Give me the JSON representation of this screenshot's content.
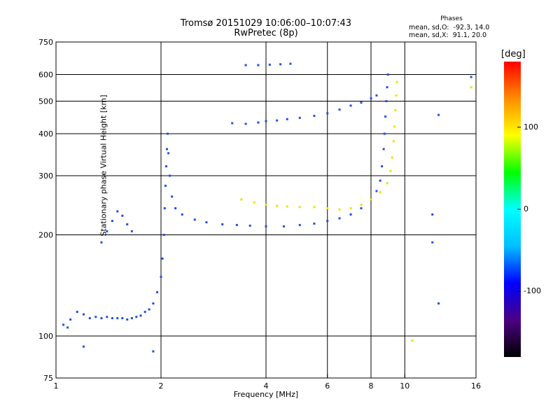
{
  "header": {
    "title_line1": "Tromsø 20151029 10:06:00–10:07:43",
    "title_line2": "RwPretec (8p)"
  },
  "phase_box": {
    "heading": "Phases",
    "o_stats": "mean, sd,O:  -92.3, 14.0",
    "x_stats": "mean, sd,X:  91.1, 20.0"
  },
  "colorbar": {
    "unit": "[deg]",
    "ticks": [
      {
        "label": "100",
        "value": 100
      },
      {
        "label": "0",
        "value": 0
      },
      {
        "label": "-100",
        "value": -100
      }
    ],
    "range": [
      -180,
      180
    ],
    "colors": [
      "#000000",
      "#4b0082",
      "#0000ff",
      "#00bfff",
      "#00ffff",
      "#00ff00",
      "#ffff00",
      "#ff8c00",
      "#ff0000"
    ]
  },
  "chart_data": {
    "type": "scatter",
    "xlabel": "Frequency [MHz]",
    "ylabel": "Stationary phase Virtual Height [km]",
    "x_scale": "log",
    "y_scale": "log",
    "xlim": [
      1,
      16
    ],
    "ylim": [
      75,
      750
    ],
    "x_ticks": [
      1,
      2,
      4,
      6,
      8,
      10,
      16
    ],
    "x_tick_labels": [
      "1",
      "2",
      "4",
      "6",
      "8",
      "10",
      "16"
    ],
    "y_ticks": [
      75,
      100,
      200,
      300,
      400,
      500,
      600,
      750
    ],
    "y_tick_labels": [
      "75",
      "100",
      "200",
      "300",
      "400",
      "500",
      "600",
      "750"
    ],
    "grid": true,
    "series": [
      {
        "name": "O",
        "color": "#1e50e6",
        "points": [
          [
            1.05,
            108
          ],
          [
            1.08,
            106
          ],
          [
            1.1,
            112
          ],
          [
            1.15,
            118
          ],
          [
            1.2,
            116
          ],
          [
            1.25,
            113
          ],
          [
            1.3,
            114
          ],
          [
            1.35,
            113
          ],
          [
            1.4,
            114
          ],
          [
            1.45,
            113
          ],
          [
            1.5,
            113
          ],
          [
            1.55,
            113
          ],
          [
            1.6,
            112
          ],
          [
            1.65,
            113
          ],
          [
            1.7,
            114
          ],
          [
            1.75,
            115
          ],
          [
            1.8,
            118
          ],
          [
            1.85,
            120
          ],
          [
            1.9,
            125
          ],
          [
            1.95,
            135
          ],
          [
            2.0,
            150
          ],
          [
            2.02,
            170
          ],
          [
            2.04,
            200
          ],
          [
            2.05,
            240
          ],
          [
            2.06,
            280
          ],
          [
            2.07,
            320
          ],
          [
            2.08,
            360
          ],
          [
            2.09,
            400
          ],
          [
            2.1,
            350
          ],
          [
            2.12,
            300
          ],
          [
            2.15,
            260
          ],
          [
            2.2,
            240
          ],
          [
            2.3,
            230
          ],
          [
            2.5,
            222
          ],
          [
            2.7,
            218
          ],
          [
            3.0,
            215
          ],
          [
            3.3,
            214
          ],
          [
            3.6,
            213
          ],
          [
            4.0,
            212
          ],
          [
            4.5,
            212
          ],
          [
            5.0,
            214
          ],
          [
            5.5,
            216
          ],
          [
            6.0,
            220
          ],
          [
            6.5,
            224
          ],
          [
            7.0,
            230
          ],
          [
            7.5,
            240
          ],
          [
            8.0,
            255
          ],
          [
            8.3,
            270
          ],
          [
            8.5,
            290
          ],
          [
            8.6,
            320
          ],
          [
            8.7,
            360
          ],
          [
            8.75,
            400
          ],
          [
            8.8,
            450
          ],
          [
            8.85,
            500
          ],
          [
            8.9,
            550
          ],
          [
            8.95,
            600
          ],
          [
            3.2,
            430
          ],
          [
            3.5,
            428
          ],
          [
            3.8,
            432
          ],
          [
            4.0,
            436
          ],
          [
            4.3,
            438
          ],
          [
            4.6,
            442
          ],
          [
            5.0,
            446
          ],
          [
            5.5,
            452
          ],
          [
            6.0,
            460
          ],
          [
            6.5,
            472
          ],
          [
            7.0,
            485
          ],
          [
            7.5,
            495
          ],
          [
            8.0,
            510
          ],
          [
            8.3,
            520
          ],
          [
            3.5,
            640
          ],
          [
            3.8,
            640
          ],
          [
            4.1,
            642
          ],
          [
            4.4,
            644
          ],
          [
            4.7,
            646
          ],
          [
            1.35,
            190
          ],
          [
            1.4,
            205
          ],
          [
            1.45,
            220
          ],
          [
            1.5,
            235
          ],
          [
            1.55,
            228
          ],
          [
            1.6,
            215
          ],
          [
            1.65,
            205
          ],
          [
            1.2,
            93
          ],
          [
            1.9,
            90
          ],
          [
            12.5,
            125
          ],
          [
            12.0,
            230
          ],
          [
            12.0,
            190
          ],
          [
            15.5,
            590
          ],
          [
            12.5,
            455
          ]
        ]
      },
      {
        "name": "X",
        "color": "#e6e600",
        "points": [
          [
            3.4,
            255
          ],
          [
            3.7,
            250
          ],
          [
            4.0,
            246
          ],
          [
            4.3,
            244
          ],
          [
            4.6,
            243
          ],
          [
            5.0,
            242
          ],
          [
            5.5,
            242
          ],
          [
            6.0,
            240
          ],
          [
            6.5,
            238
          ],
          [
            7.0,
            240
          ],
          [
            7.5,
            246
          ],
          [
            8.0,
            255
          ],
          [
            8.5,
            268
          ],
          [
            8.9,
            285
          ],
          [
            9.1,
            310
          ],
          [
            9.2,
            340
          ],
          [
            9.3,
            380
          ],
          [
            9.35,
            420
          ],
          [
            9.4,
            470
          ],
          [
            9.45,
            520
          ],
          [
            9.5,
            570
          ],
          [
            10.5,
            97
          ],
          [
            15.5,
            550
          ]
        ]
      }
    ]
  }
}
